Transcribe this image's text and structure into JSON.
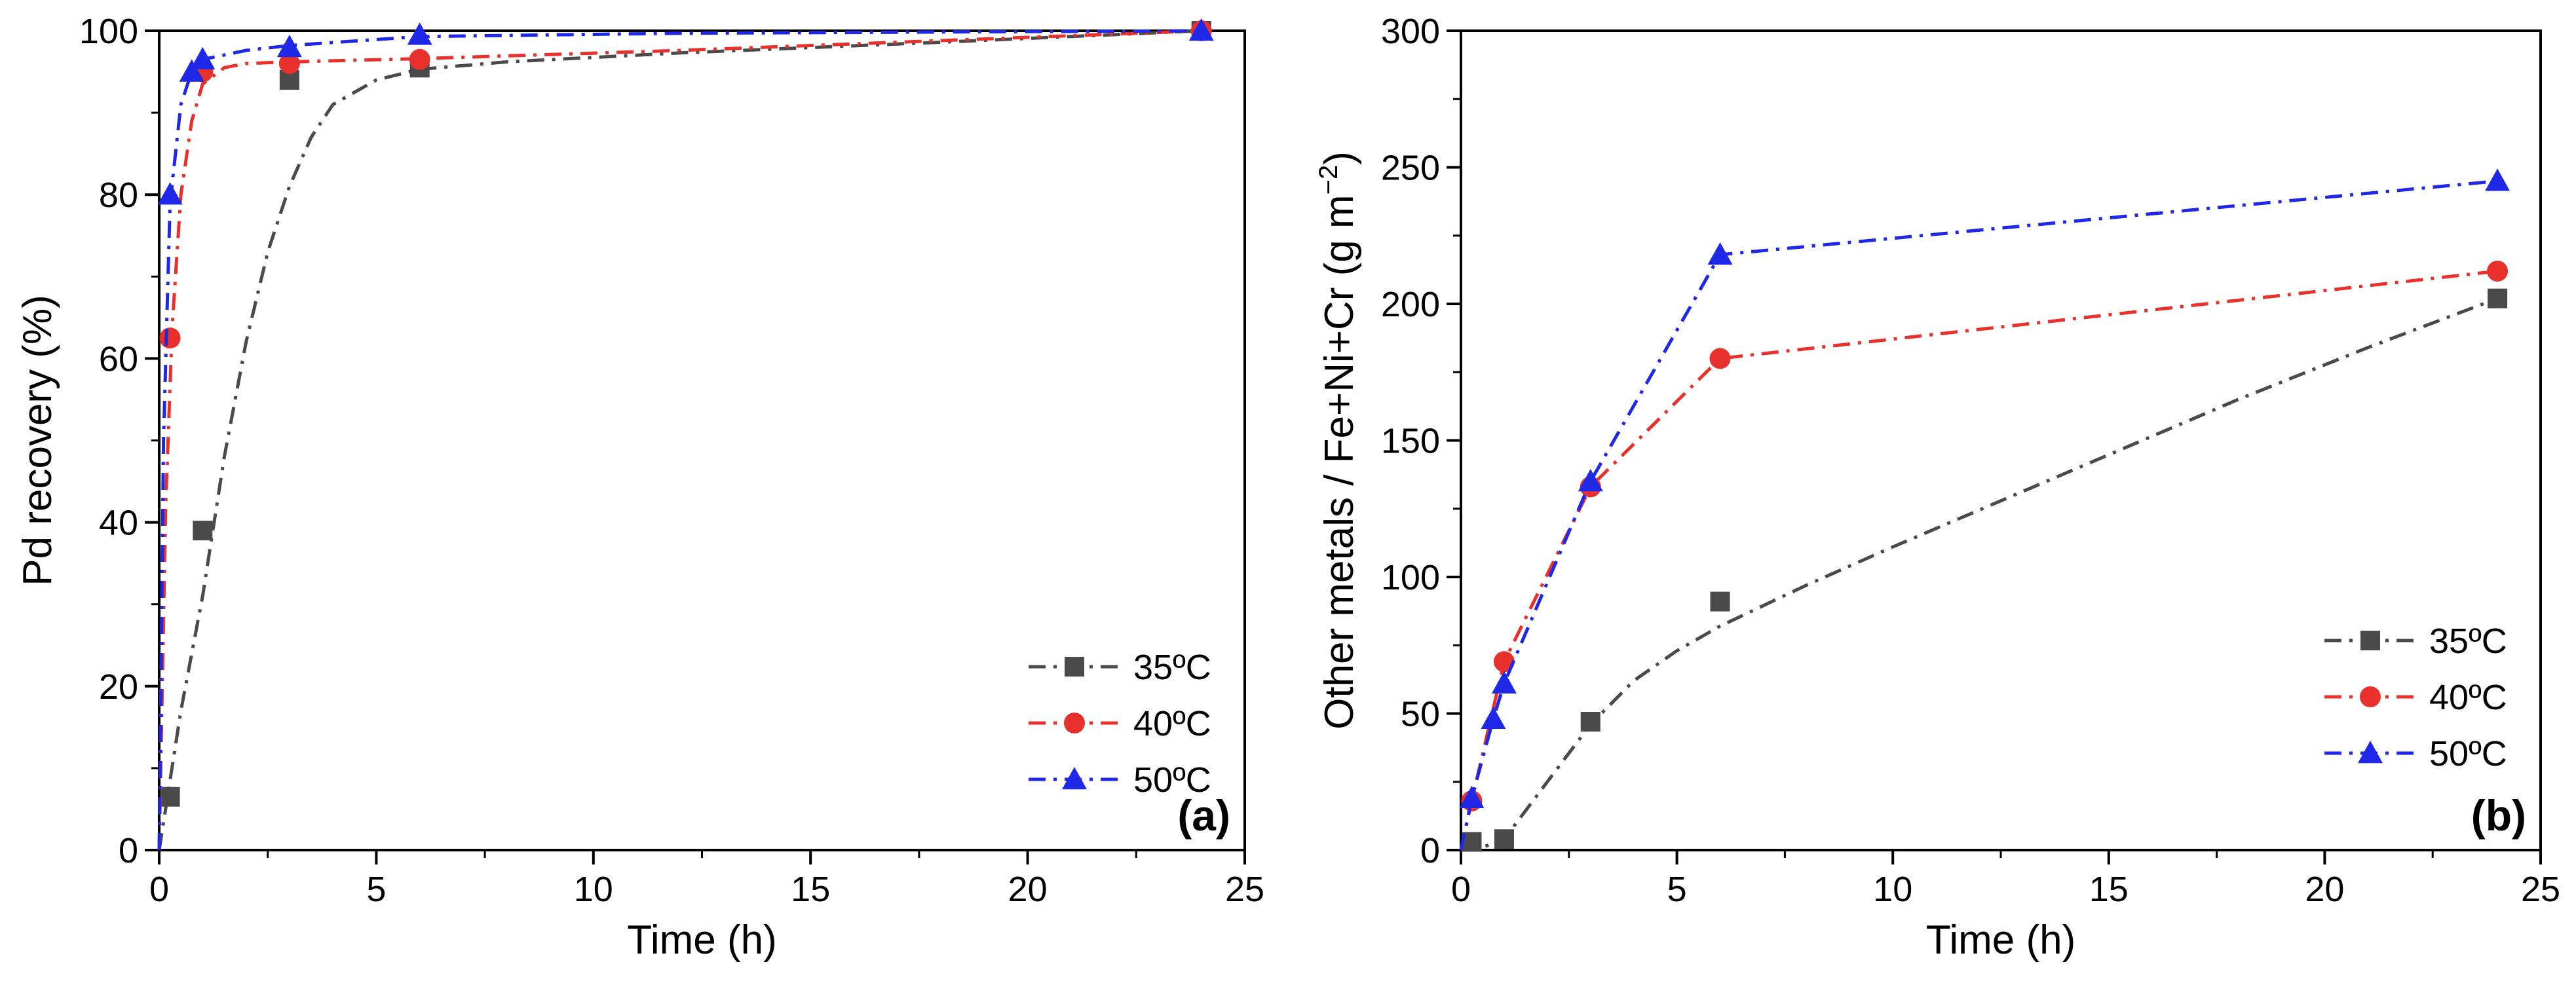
{
  "chart_data": [
    {
      "type": "line",
      "panel_label": "(a)",
      "xlabel": "Time (h)",
      "ylabel": "Pd recovery (%)",
      "xlim": [
        0,
        25
      ],
      "ylim": [
        0,
        100
      ],
      "xticks": [
        0,
        5,
        10,
        15,
        20,
        25
      ],
      "yticks": [
        0,
        20,
        40,
        60,
        80,
        100
      ],
      "xtick_labels": [
        "0",
        "5",
        "10",
        "15",
        "20",
        "25"
      ],
      "ytick_labels": [
        "0",
        "20",
        "40",
        "60",
        "80",
        "100"
      ],
      "legend_position": "bottom-right",
      "series": [
        {
          "name": "35ºC",
          "color": "#4a4a4a",
          "marker": "square",
          "dash": "dashdot",
          "points": [
            [
              0.25,
              6.5
            ],
            [
              1,
              39
            ],
            [
              3,
              94
            ],
            [
              6,
              95.5
            ],
            [
              24,
              100
            ]
          ],
          "fit": [
            [
              0,
              0
            ],
            [
              0.5,
              17
            ],
            [
              1,
              31
            ],
            [
              1.5,
              48
            ],
            [
              2,
              62
            ],
            [
              2.5,
              73
            ],
            [
              3,
              81
            ],
            [
              3.5,
              87
            ],
            [
              4,
              91
            ],
            [
              5,
              94
            ],
            [
              6,
              95.3
            ],
            [
              8,
              96.2
            ],
            [
              12,
              97.3
            ],
            [
              18,
              98.6
            ],
            [
              24,
              100
            ]
          ]
        },
        {
          "name": "40ºC",
          "color": "#e8302c",
          "marker": "circle",
          "dash": "dashdot",
          "points": [
            [
              0.25,
              62.5
            ],
            [
              1,
              95
            ],
            [
              3,
              96
            ],
            [
              6,
              96.5
            ],
            [
              24,
              100
            ]
          ],
          "fit": [
            [
              0,
              0
            ],
            [
              0.15,
              42
            ],
            [
              0.3,
              64
            ],
            [
              0.5,
              80
            ],
            [
              0.75,
              89
            ],
            [
              1,
              93.5
            ],
            [
              1.5,
              95.5
            ],
            [
              2,
              96
            ],
            [
              3,
              96.2
            ],
            [
              6,
              96.6
            ],
            [
              12,
              97.6
            ],
            [
              18,
              98.8
            ],
            [
              24,
              100
            ]
          ]
        },
        {
          "name": "50ºC",
          "color": "#1f28e6",
          "marker": "triangle",
          "dash": "dashdot",
          "points": [
            [
              0.25,
              80
            ],
            [
              0.75,
              95
            ],
            [
              1,
              96.5
            ],
            [
              3,
              98
            ],
            [
              6,
              99.5
            ],
            [
              24,
              100
            ]
          ],
          "fit": [
            [
              0,
              0
            ],
            [
              0.1,
              50
            ],
            [
              0.25,
              79
            ],
            [
              0.5,
              91
            ],
            [
              0.75,
              95
            ],
            [
              1,
              96.5
            ],
            [
              2,
              97.6
            ],
            [
              3,
              98.2
            ],
            [
              6,
              99.3
            ],
            [
              12,
              99.7
            ],
            [
              24,
              100
            ]
          ]
        }
      ]
    },
    {
      "type": "line",
      "panel_label": "(b)",
      "xlabel": "Time (h)",
      "ylabel_main": "Other metals / Fe+Ni+Cr (g m",
      "ylabel_sup": "−2",
      "ylabel_end": ")",
      "xlim": [
        0,
        25
      ],
      "ylim": [
        0,
        300
      ],
      "xticks": [
        0,
        5,
        10,
        15,
        20,
        25
      ],
      "yticks": [
        0,
        50,
        100,
        150,
        200,
        250,
        300
      ],
      "xtick_labels": [
        "0",
        "5",
        "10",
        "15",
        "20",
        "25"
      ],
      "ytick_labels": [
        "0",
        "50",
        "100",
        "150",
        "200",
        "250",
        "300"
      ],
      "legend_position": "bottom-right",
      "series": [
        {
          "name": "35ºC",
          "color": "#4a4a4a",
          "marker": "square",
          "dash": "dashdot",
          "points": [
            [
              0.25,
              3
            ],
            [
              1,
              4
            ],
            [
              3,
              47
            ],
            [
              6,
              91
            ],
            [
              24,
              202
            ]
          ],
          "fit": [
            [
              0,
              0
            ],
            [
              0.5,
              1
            ],
            [
              1,
              4
            ],
            [
              2,
              25
            ],
            [
              3,
              46
            ],
            [
              4,
              62
            ],
            [
              5,
              73
            ],
            [
              6,
              82
            ],
            [
              8,
              97
            ],
            [
              10,
              111
            ],
            [
              14,
              138
            ],
            [
              18,
              165
            ],
            [
              21,
              184
            ],
            [
              24,
              202
            ]
          ]
        },
        {
          "name": "40ºC",
          "color": "#e8302c",
          "marker": "circle",
          "dash": "dashdot",
          "points": [
            [
              0.25,
              18
            ],
            [
              1,
              69
            ],
            [
              3,
              133
            ],
            [
              6,
              180
            ],
            [
              24,
              212
            ]
          ],
          "fit": [
            [
              0,
              0
            ],
            [
              0.25,
              18
            ],
            [
              1,
              69
            ],
            [
              3,
              133
            ],
            [
              6,
              180
            ],
            [
              24,
              212
            ]
          ]
        },
        {
          "name": "50ºC",
          "color": "#1f28e6",
          "marker": "triangle",
          "dash": "dashdot",
          "points": [
            [
              0.25,
              19
            ],
            [
              0.75,
              48
            ],
            [
              1,
              61
            ],
            [
              3,
              135
            ],
            [
              6,
              218
            ],
            [
              24,
              245
            ]
          ],
          "fit": [
            [
              0,
              0
            ],
            [
              0.25,
              19
            ],
            [
              0.75,
              48
            ],
            [
              1,
              61
            ],
            [
              3,
              135
            ],
            [
              6,
              218
            ],
            [
              24,
              245
            ]
          ]
        }
      ]
    }
  ]
}
